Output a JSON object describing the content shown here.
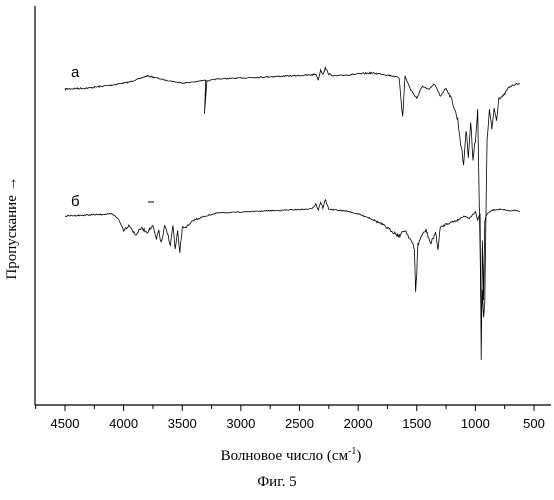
{
  "figure_caption": "Фиг. 5",
  "chart_data": {
    "type": "line",
    "xlabel": "Волновое число (см",
    "xlabel_sup": "-1",
    "xlabel_tail": ")",
    "ylabel": "Пропускание →",
    "xlim": [
      4800,
      450
    ],
    "x_reversed": true,
    "xticks": [
      4500,
      4000,
      3500,
      3000,
      2500,
      2000,
      1500,
      1000,
      500
    ],
    "grid": false,
    "series": [
      {
        "name": "а",
        "color": "#000000",
        "x": [
          4500,
          4300,
          4100,
          3950,
          3850,
          3800,
          3750,
          3650,
          3500,
          3400,
          3300,
          3310,
          3290,
          3200,
          3000,
          2800,
          2600,
          2400,
          2360,
          2340,
          2320,
          2300,
          2280,
          2250,
          2200,
          2100,
          2000,
          1900,
          1800,
          1700,
          1650,
          1620,
          1600,
          1580,
          1550,
          1500,
          1450,
          1400,
          1350,
          1300,
          1250,
          1200,
          1150,
          1120,
          1100,
          1080,
          1060,
          1040,
          1020,
          1000,
          980,
          960,
          950,
          940,
          930,
          920,
          900,
          880,
          860,
          840,
          820,
          800,
          760,
          720,
          680,
          640,
          620
        ],
        "y": [
          89,
          88,
          85,
          82,
          78,
          76,
          77,
          80,
          83,
          82,
          80,
          112,
          81,
          79,
          78,
          77,
          76,
          75,
          74,
          80,
          70,
          74,
          68,
          74,
          76,
          75,
          74,
          73,
          74,
          76,
          78,
          118,
          76,
          82,
          90,
          98,
          86,
          90,
          84,
          96,
          88,
          100,
          120,
          148,
          165,
          130,
          155,
          122,
          160,
          140,
          110,
          250,
          330,
          290,
          320,
          300,
          140,
          110,
          130,
          108,
          120,
          98,
          96,
          88,
          85,
          84,
          84
        ]
      },
      {
        "name": "б",
        "color": "#000000",
        "x": [
          4500,
          4300,
          4100,
          4050,
          4000,
          3950,
          3900,
          3850,
          3800,
          3750,
          3720,
          3700,
          3680,
          3650,
          3620,
          3600,
          3580,
          3560,
          3540,
          3520,
          3500,
          3450,
          3400,
          3300,
          3200,
          3000,
          2800,
          2600,
          2400,
          2360,
          2340,
          2320,
          2300,
          2280,
          2250,
          2200,
          2100,
          2000,
          1900,
          1800,
          1700,
          1650,
          1600,
          1550,
          1520,
          1510,
          1500,
          1490,
          1460,
          1420,
          1380,
          1340,
          1320,
          1300,
          1250,
          1200,
          1150,
          1100,
          1050,
          1000,
          980,
          960,
          950,
          940,
          930,
          920,
          910,
          900,
          880,
          860,
          820,
          780,
          740,
          700,
          660,
          620
        ],
        "y": [
          216,
          215,
          214,
          218,
          230,
          225,
          235,
          228,
          232,
          226,
          240,
          230,
          244,
          226,
          236,
          245,
          225,
          250,
          232,
          252,
          228,
          226,
          220,
          216,
          213,
          212,
          211,
          210,
          209,
          204,
          210,
          202,
          208,
          200,
          209,
          210,
          211,
          214,
          218,
          224,
          232,
          236,
          230,
          240,
          250,
          290,
          272,
          245,
          236,
          230,
          244,
          232,
          250,
          228,
          224,
          222,
          220,
          216,
          218,
          212,
          220,
          214,
          362,
          240,
          300,
          222,
          216,
          214,
          212,
          210,
          210,
          209,
          210,
          211,
          210,
          212
        ]
      }
    ],
    "annotations": [
      {
        "text": "а"
      },
      {
        "text": "б"
      }
    ]
  }
}
